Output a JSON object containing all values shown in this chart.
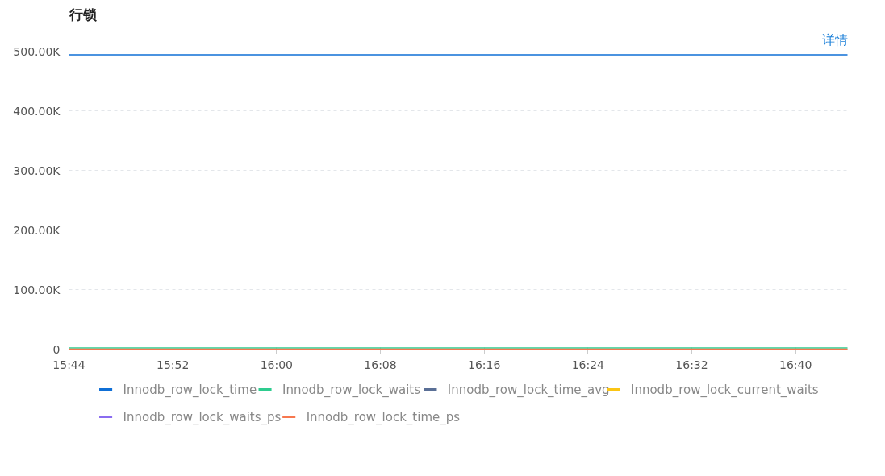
{
  "chart_data": {
    "type": "line",
    "title": "行锁",
    "annotations": [
      "详情"
    ],
    "x": [
      15.733333,
      16.733333
    ],
    "xlim": [
      15.733333,
      16.733333
    ],
    "xticks": [
      {
        "value": 15.733333,
        "label": "15:44"
      },
      {
        "value": 15.866667,
        "label": "15:52"
      },
      {
        "value": 16.0,
        "label": "16:00"
      },
      {
        "value": 16.133333,
        "label": "16:08"
      },
      {
        "value": 16.266667,
        "label": "16:16"
      },
      {
        "value": 16.4,
        "label": "16:24"
      },
      {
        "value": 16.533333,
        "label": "16:32"
      },
      {
        "value": 16.666667,
        "label": "16:40"
      }
    ],
    "ylim": [
      0,
      500000
    ],
    "yticks": [
      0,
      {
        "value": 100000,
        "label": "100.00K"
      },
      {
        "value": 200000,
        "label": "200.00K"
      },
      {
        "value": 300000,
        "label": "300.00K"
      },
      {
        "value": 400000,
        "label": "400.00K"
      },
      {
        "value": 500000,
        "label": "500.00K"
      }
    ],
    "grid": "y",
    "legend": "bottom",
    "marker": "none",
    "line_style": "solid",
    "series": [
      {
        "name": "Innodb_row_lock_time",
        "color": "#0f6fd6",
        "values": [
          494000,
          494000
        ]
      },
      {
        "name": "Innodb_row_lock_waits",
        "color": "#2ecc8f",
        "values": [
          2000,
          2000
        ]
      },
      {
        "name": "Innodb_row_lock_time_avg",
        "color": "#5a6f96",
        "values": [
          null,
          null
        ]
      },
      {
        "name": "Innodb_row_lock_current_waits",
        "color": "#fbc514",
        "values": [
          null,
          null
        ]
      },
      {
        "name": "Innodb_row_lock_waits_ps",
        "color": "#8a6cf0",
        "values": [
          null,
          null
        ]
      },
      {
        "name": "Innodb_row_lock_time_ps",
        "color": "#f7774e",
        "values": [
          0,
          0
        ]
      }
    ]
  }
}
